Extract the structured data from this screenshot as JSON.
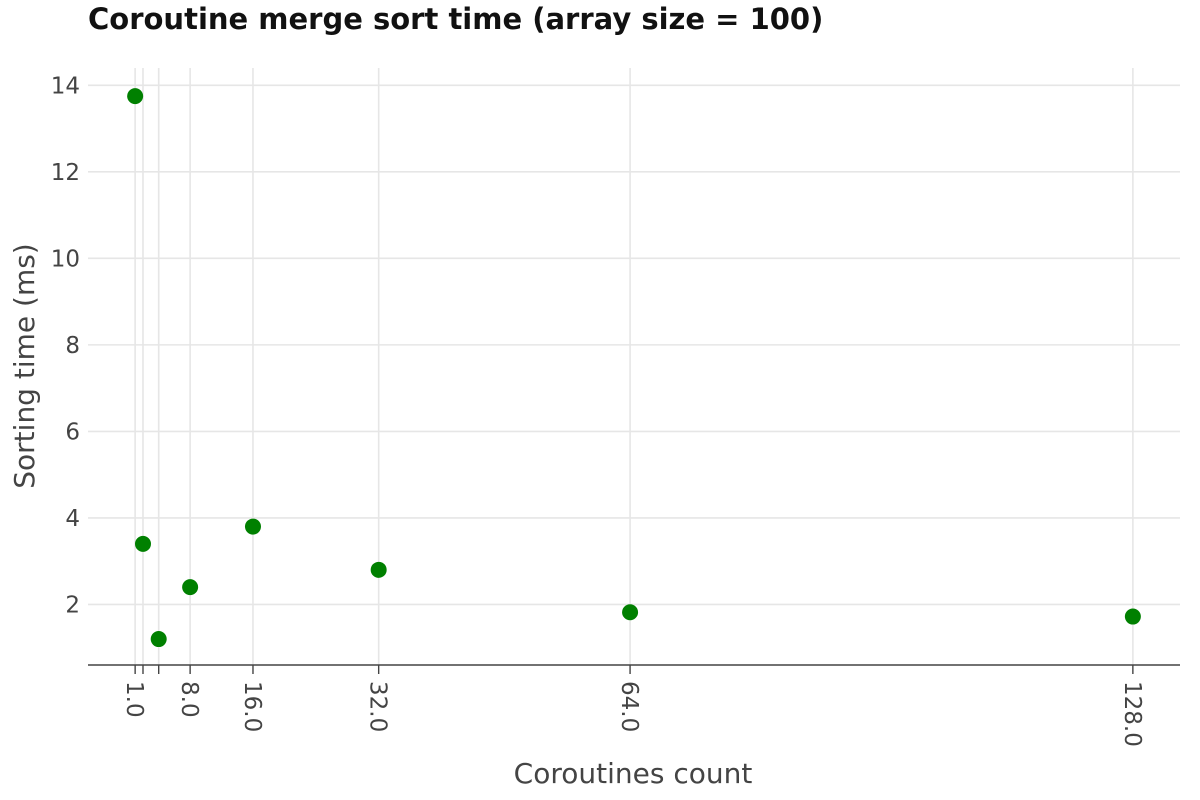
{
  "chart_data": {
    "type": "scatter",
    "title": "Coroutine merge sort time (array size = 100)",
    "xlabel": "Coroutines count",
    "ylabel": "Sorting time (ms)",
    "x_ticks": [
      1,
      2,
      4,
      8,
      16,
      32,
      64,
      128
    ],
    "x_tick_labels": [
      "1.0",
      "",
      "",
      "8.0",
      "16.0",
      "32.0",
      "64.0",
      "128.0"
    ],
    "y_ticks": [
      2,
      4,
      6,
      8,
      10,
      12,
      14
    ],
    "y_tick_labels": [
      "2",
      "4",
      "6",
      "8",
      "10",
      "12",
      "14"
    ],
    "xlim": [
      -5,
      134
    ],
    "ylim": [
      0.6,
      14.4
    ],
    "grid": true,
    "marker_color": "#008000",
    "series": [
      {
        "x": [
          1,
          2,
          4,
          8,
          16,
          32,
          64,
          128
        ],
        "y": [
          13.75,
          3.4,
          1.2,
          2.4,
          3.8,
          2.8,
          1.82,
          1.72
        ]
      }
    ]
  }
}
